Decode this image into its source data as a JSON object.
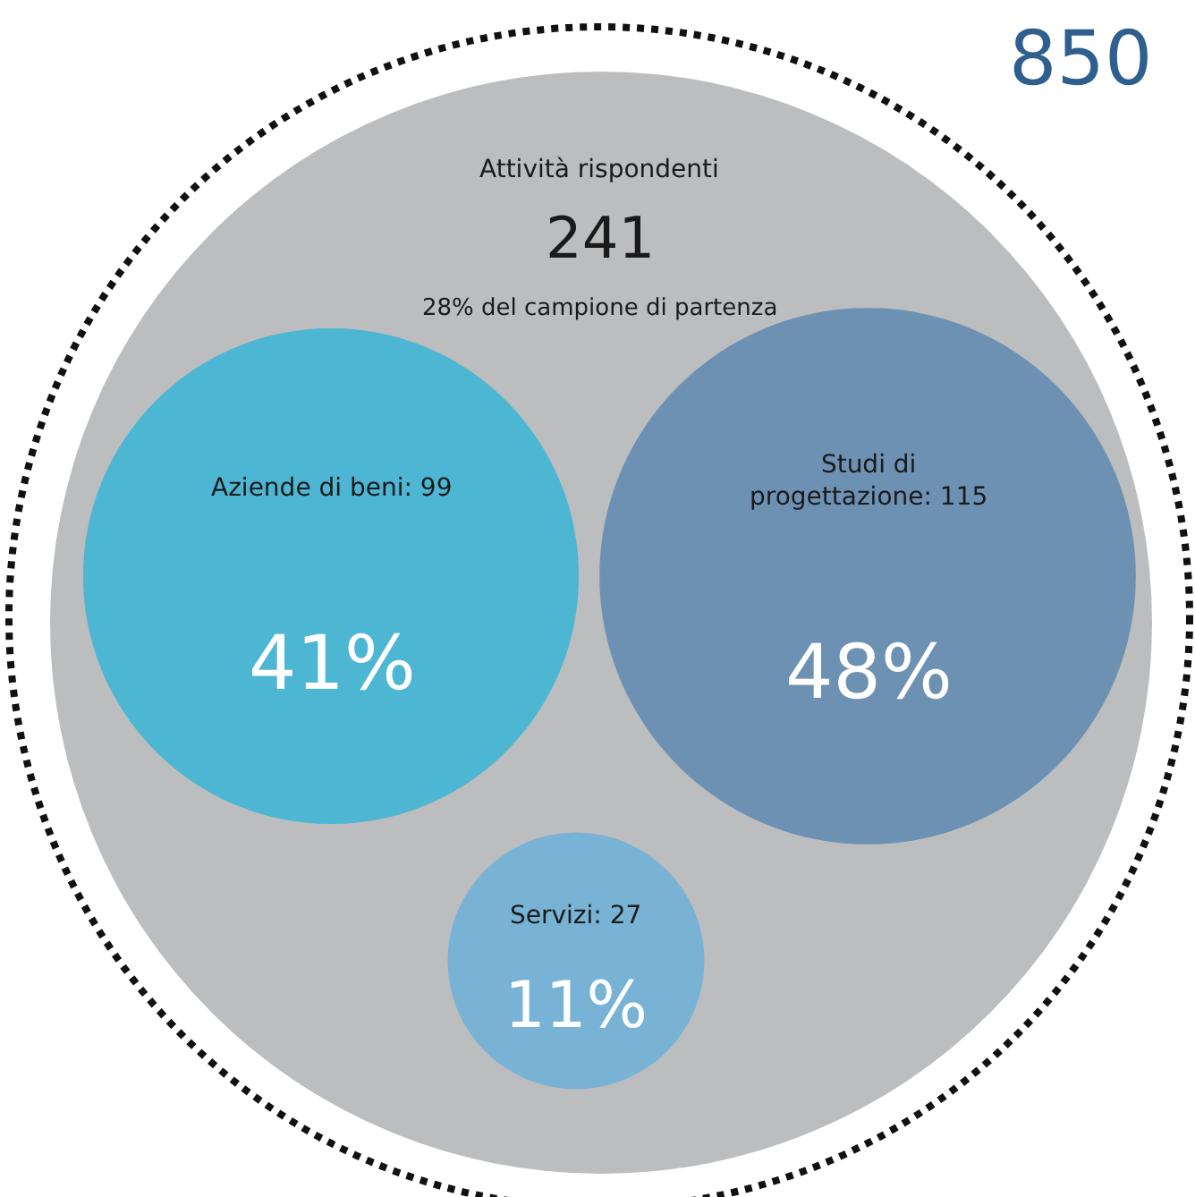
{
  "chart_data": {
    "type": "other",
    "annotations": [
      "850",
      "Attività rispondenti",
      "241",
      "28% del campione di partenza"
    ],
    "categories": [
      "Aziende di beni: 99",
      "Studi di\nprogettazione: 115",
      "Servizi: 27"
    ],
    "values": [
      41,
      48,
      11
    ],
    "value_labels": [
      "41%",
      "48%",
      "11%"
    ],
    "colors": [
      "#1cb3dc",
      "#4b7fae",
      "#5bafde"
    ]
  }
}
